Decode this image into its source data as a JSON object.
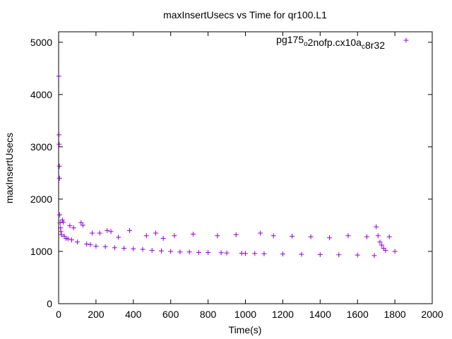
{
  "chart_data": {
    "type": "scatter",
    "title": "maxInsertUsecs vs Time for qr100.L1",
    "xlabel": "Time(s)",
    "ylabel": "maxInsertUsecs",
    "xlim": [
      0,
      2000
    ],
    "ylim": [
      0,
      5200
    ],
    "xticks": [
      "0",
      "200",
      "400",
      "600",
      "800",
      "1000",
      "1200",
      "1400",
      "1600",
      "1800",
      "2000"
    ],
    "yticks": [
      "0",
      "1000",
      "2000",
      "3000",
      "4000",
      "5000"
    ],
    "grid": false,
    "legend": {
      "placement": "top-right",
      "label": "pg175_o2nofp.cx10a_c8r32"
    },
    "series": [
      {
        "name": "pg175_o2nofp.cx10a_c8r32",
        "color": "#9400d3",
        "marker": "+",
        "points": [
          [
            1,
            4350
          ],
          [
            2,
            3230
          ],
          [
            3,
            3050
          ],
          [
            4,
            2630
          ],
          [
            5,
            2400
          ],
          [
            6,
            1700
          ],
          [
            8,
            1550
          ],
          [
            10,
            1450
          ],
          [
            12,
            1380
          ],
          [
            15,
            1320
          ],
          [
            20,
            1600
          ],
          [
            25,
            1560
          ],
          [
            30,
            1290
          ],
          [
            40,
            1250
          ],
          [
            50,
            1240
          ],
          [
            60,
            1490
          ],
          [
            70,
            1220
          ],
          [
            80,
            1450
          ],
          [
            100,
            1180
          ],
          [
            120,
            1550
          ],
          [
            130,
            1500
          ],
          [
            150,
            1140
          ],
          [
            170,
            1130
          ],
          [
            180,
            1350
          ],
          [
            200,
            1100
          ],
          [
            220,
            1350
          ],
          [
            250,
            1090
          ],
          [
            260,
            1400
          ],
          [
            280,
            1380
          ],
          [
            300,
            1070
          ],
          [
            320,
            1270
          ],
          [
            350,
            1060
          ],
          [
            380,
            1400
          ],
          [
            400,
            1050
          ],
          [
            450,
            1040
          ],
          [
            470,
            1300
          ],
          [
            500,
            1020
          ],
          [
            520,
            1350
          ],
          [
            550,
            1010
          ],
          [
            560,
            1250
          ],
          [
            600,
            1000
          ],
          [
            620,
            1300
          ],
          [
            650,
            990
          ],
          [
            700,
            990
          ],
          [
            720,
            1330
          ],
          [
            750,
            980
          ],
          [
            800,
            980
          ],
          [
            850,
            1300
          ],
          [
            870,
            975
          ],
          [
            900,
            970
          ],
          [
            950,
            1320
          ],
          [
            980,
            965
          ],
          [
            1000,
            960
          ],
          [
            1050,
            960
          ],
          [
            1080,
            1350
          ],
          [
            1100,
            955
          ],
          [
            1150,
            1300
          ],
          [
            1200,
            950
          ],
          [
            1250,
            1290
          ],
          [
            1300,
            945
          ],
          [
            1350,
            1280
          ],
          [
            1400,
            940
          ],
          [
            1450,
            1260
          ],
          [
            1500,
            935
          ],
          [
            1550,
            1300
          ],
          [
            1600,
            930
          ],
          [
            1650,
            1280
          ],
          [
            1690,
            920
          ],
          [
            1700,
            1470
          ],
          [
            1710,
            1300
          ],
          [
            1720,
            1180
          ],
          [
            1730,
            1120
          ],
          [
            1740,
            1060
          ],
          [
            1750,
            1020
          ],
          [
            1770,
            1280
          ],
          [
            1800,
            1000
          ]
        ]
      }
    ]
  }
}
